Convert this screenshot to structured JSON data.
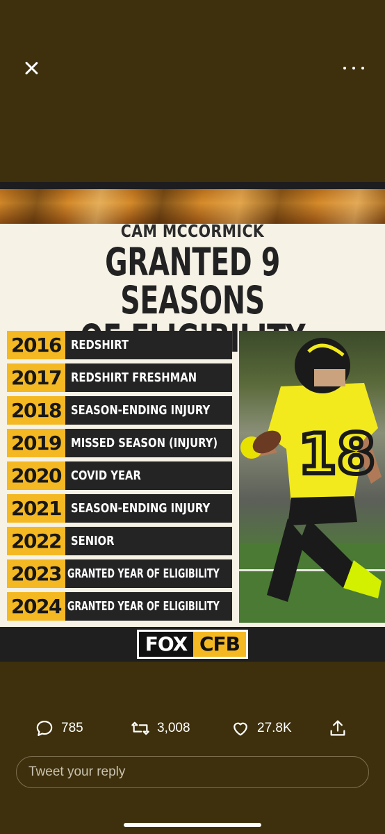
{
  "viewer": {
    "close_icon": "close-icon",
    "more_icon": "more-horizontal-icon"
  },
  "graphic": {
    "subtitle": "CAM MCCORMICK",
    "title_line1": "GRANTED 9 SEASONS",
    "title_line2": "OF ELIGIBILITY",
    "rows": [
      {
        "year": "2016",
        "label": "REDSHIRT"
      },
      {
        "year": "2017",
        "label": "REDSHIRT FRESHMAN"
      },
      {
        "year": "2018",
        "label": "SEASON-ENDING INJURY"
      },
      {
        "year": "2019",
        "label": "MISSED SEASON (INJURY)"
      },
      {
        "year": "2020",
        "label": "COVID YEAR"
      },
      {
        "year": "2021",
        "label": "SEASON-ENDING INJURY"
      },
      {
        "year": "2022",
        "label": "SENIOR"
      },
      {
        "year": "2023",
        "label": "GRANTED YEAR OF ELIGIBILITY"
      },
      {
        "year": "2024",
        "label": "GRANTED YEAR OF ELIGIBILITY"
      }
    ],
    "jersey_number": "18",
    "logo_left": "FOX",
    "logo_right": "CFB",
    "colors": {
      "accent_yellow": "#f4b823",
      "row_dark": "#242424",
      "cream": "#f6f2e6"
    }
  },
  "actions": {
    "replies": "785",
    "retweets": "3,008",
    "likes": "27.8K"
  },
  "reply": {
    "placeholder": "Tweet your reply"
  },
  "colors": {
    "background": "#3e300c"
  }
}
